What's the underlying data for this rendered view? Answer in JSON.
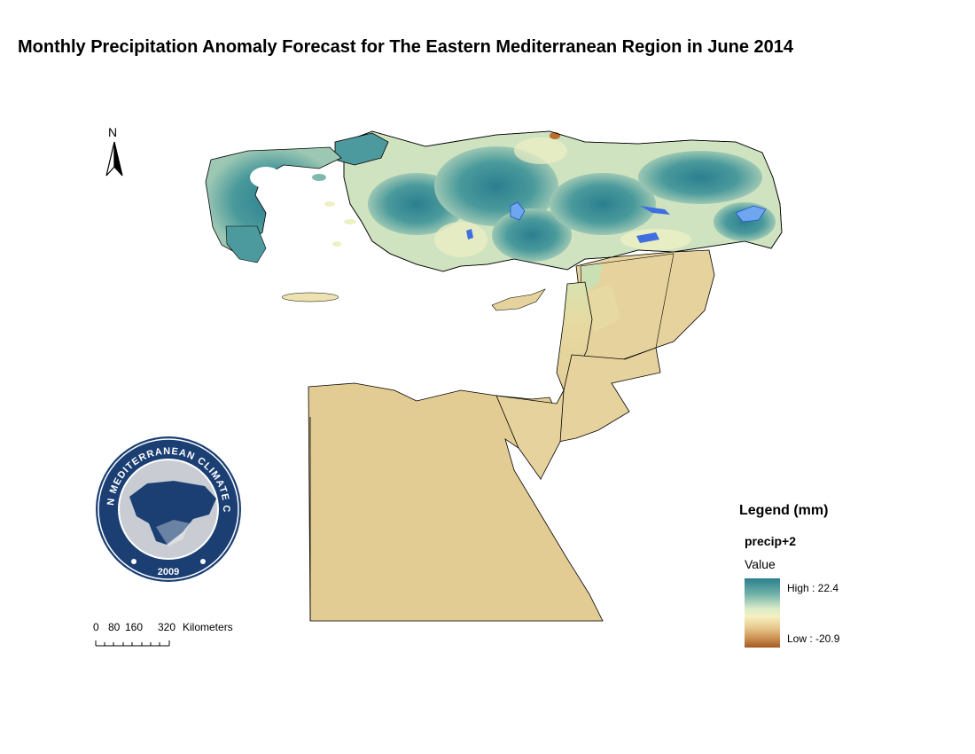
{
  "title": "Monthly Precipitation Anomaly Forecast for The Eastern Mediterranean Region in June 2014",
  "north_arrow": {
    "label": "N"
  },
  "logo": {
    "text": "EASTERN MEDITERRANEAN CLIMATE CENTRE",
    "year": "2009",
    "colors": {
      "navy": "#1b3f73",
      "gray": "#c9cdd3"
    }
  },
  "scale_bar": {
    "tick_labels": [
      "0",
      "80",
      "160",
      "320"
    ],
    "unit": "Kilometers"
  },
  "legend": {
    "title": "Legend (mm)",
    "layer_name": "precip+2",
    "field": "Value",
    "high_label": "High : 22.4",
    "low_label": "Low : -20.9",
    "high_value": 22.4,
    "low_value": -20.9,
    "colors": {
      "high": "#2a7f8d",
      "mid": "#f7f0bf",
      "low": "#a45a22"
    }
  },
  "map_colors": {
    "wet": "#2f8594",
    "wet_light": "#7fb9ad",
    "neutral": "#eef0c4",
    "dry": "#e6cf95",
    "very_dry": "#b8702e",
    "lakes": "#3f6ee0"
  }
}
